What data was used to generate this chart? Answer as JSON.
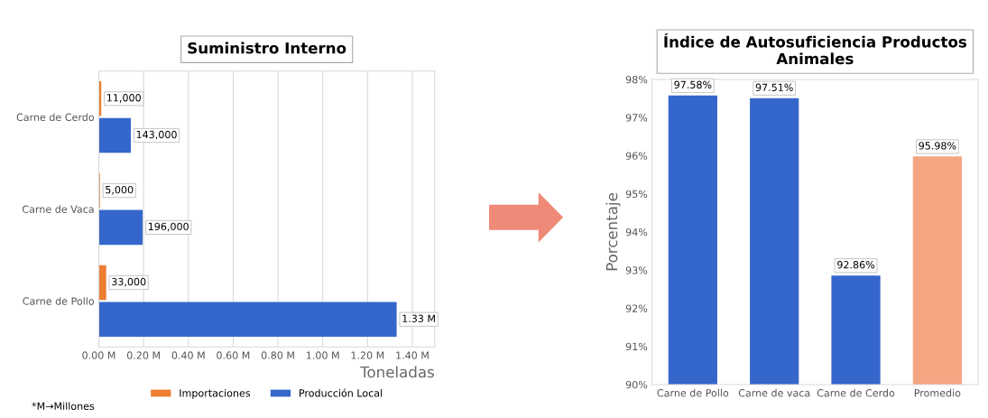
{
  "chart_data": [
    {
      "type": "bar",
      "title": "Suministro Interno",
      "orientation": "horizontal",
      "categories": [
        "Carne de Cerdo",
        "Carne de Vaca",
        "Carne de Pollo"
      ],
      "series": [
        {
          "name": "Importaciones",
          "color": "#ed7d31",
          "values": [
            11000,
            5000,
            33000
          ],
          "value_labels": [
            "11,000",
            "5,000",
            "33,000"
          ]
        },
        {
          "name": "Producción Local",
          "color": "#3566cc",
          "values": [
            143000,
            196000,
            1330000
          ],
          "value_labels": [
            "143,000",
            "196,000",
            "1.33 M"
          ]
        }
      ],
      "xlim": [
        0,
        1500000
      ],
      "xticks": [
        {
          "value": 0,
          "label": "0.00 M"
        },
        {
          "value": 200000,
          "label": "0.20 M"
        },
        {
          "value": 400000,
          "label": "0.40 M"
        },
        {
          "value": 600000,
          "label": "0.60 M"
        },
        {
          "value": 800000,
          "label": "0.80 M"
        },
        {
          "value": 1000000,
          "label": "1.00 M"
        },
        {
          "value": 1200000,
          "label": "1.20 M"
        },
        {
          "value": 1400000,
          "label": "1.40 M"
        }
      ],
      "xlabel": "Toneladas",
      "grid": "x",
      "legend": "bottom",
      "annotations": [
        "*M→Millones"
      ]
    },
    {
      "type": "bar",
      "title": "Índice de Autosuficiencia Productos Animales",
      "categories": [
        "Carne de Pollo",
        "Carne de vaca",
        "Carne de Cerdo",
        "Promedio"
      ],
      "values": [
        97.58,
        97.51,
        92.86,
        95.98
      ],
      "colors": [
        "#3566cc",
        "#3566cc",
        "#3566cc",
        "#f4a582"
      ],
      "value_labels": [
        "97.58%",
        "97.51%",
        "92.86%",
        "95.98%"
      ],
      "ylim": [
        90,
        98
      ],
      "yticks": [
        {
          "value": 90,
          "label": "90%"
        },
        {
          "value": 91,
          "label": "91%"
        },
        {
          "value": 92,
          "label": "92%"
        },
        {
          "value": 93,
          "label": "93%"
        },
        {
          "value": 94,
          "label": "94%"
        },
        {
          "value": 95,
          "label": "95%"
        },
        {
          "value": 96,
          "label": "96%"
        },
        {
          "value": 97,
          "label": "97%"
        },
        {
          "value": 98,
          "label": "98%"
        }
      ],
      "ylabel": "Porcentaje",
      "grid": false
    }
  ]
}
